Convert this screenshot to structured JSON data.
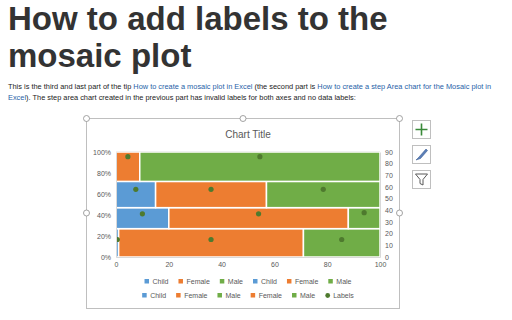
{
  "heading": "How to add labels to the mosaic plot",
  "intro": [
    {
      "text": "This is the third and last part of the tip "
    },
    {
      "text": "How to create a mosaic plot in Excel",
      "link": true
    },
    {
      "text": " (the second part is "
    },
    {
      "text": "How to create a step Area chart for the Mosaic plot in Excel",
      "link": true
    },
    {
      "text": "). The step area chart created in the previous part has invalid labels for both axes and no data labels:"
    }
  ],
  "chart_data": {
    "type": "mosaic",
    "title": "Chart Title",
    "xlim": [
      0,
      100
    ],
    "xticks": [
      0,
      20,
      40,
      60,
      80,
      100
    ],
    "ylim": [
      0,
      100
    ],
    "yticks": [
      {
        "value": 0,
        "label": "0%"
      },
      {
        "value": 20,
        "label": "20%"
      },
      {
        "value": 40,
        "label": "40%"
      },
      {
        "value": 60,
        "label": "60%"
      },
      {
        "value": 80,
        "label": "80%"
      },
      {
        "value": 100,
        "label": "100%"
      }
    ],
    "y2lim": [
      0,
      90
    ],
    "y2ticks": [
      0,
      10,
      20,
      30,
      40,
      50,
      60,
      70,
      80,
      90
    ],
    "grid": true,
    "legend": "bottom",
    "row_heights": [
      27,
      20,
      25,
      28
    ],
    "series": [
      {
        "name": "Child",
        "color": "#5b9bd5",
        "values": [
          1,
          null,
          null,
          null
        ]
      },
      {
        "name": "Female",
        "color": "#ed7d31",
        "values": [
          70,
          null,
          null,
          null
        ]
      },
      {
        "name": "Male",
        "color": "#70ad47",
        "values": [
          29,
          null,
          null,
          null
        ]
      },
      {
        "name": "Child",
        "color": "#5b9bd5",
        "values": [
          null,
          20,
          null,
          null
        ]
      },
      {
        "name": "Female",
        "color": "#ed7d31",
        "values": [
          null,
          68,
          null,
          null
        ]
      },
      {
        "name": "Male",
        "color": "#70ad47",
        "values": [
          null,
          12,
          null,
          null
        ]
      },
      {
        "name": "Child",
        "color": "#5b9bd5",
        "values": [
          null,
          null,
          15,
          null
        ]
      },
      {
        "name": "Female",
        "color": "#ed7d31",
        "values": [
          null,
          null,
          42,
          null
        ]
      },
      {
        "name": "Male",
        "color": "#70ad47",
        "values": [
          null,
          null,
          43,
          null
        ]
      },
      {
        "name": "Female",
        "color": "#ed7d31",
        "values": [
          null,
          null,
          null,
          9
        ]
      },
      {
        "name": "Male",
        "color": "#70ad47",
        "values": [
          null,
          null,
          null,
          91
        ]
      },
      {
        "name": "Labels",
        "color": "#4e7a2e",
        "type": "scatter",
        "marker": "circle",
        "axis": "y2",
        "x": [
          0.5,
          36,
          85.5,
          10,
          54,
          94,
          7.5,
          36,
          78.5,
          4.5,
          54.5
        ],
        "values": [
          15,
          15,
          15,
          37,
          37,
          38,
          58,
          58,
          58,
          86,
          86
        ]
      }
    ]
  }
}
